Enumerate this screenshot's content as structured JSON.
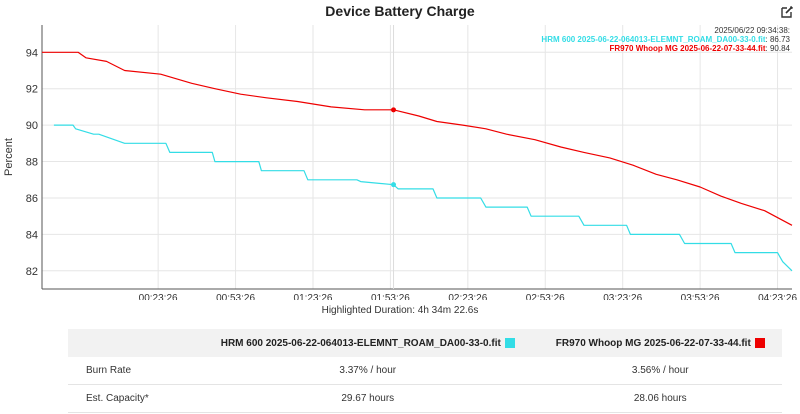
{
  "title": "Device Battery Charge",
  "readout": {
    "timestamp": "2025/06/22 09:34:38:",
    "entries": [
      {
        "name": "HRM 600 2025-06-22-064013-ELEMNT_ROAM_DA00-33-0.fit",
        "value": "86.73"
      },
      {
        "name": "FR970 Whoop MG 2025-06-22-07-33-44.fit",
        "value": "90.84"
      }
    ]
  },
  "highlighted_duration": "Highlighted Duration: 4h 34m 22.6s",
  "stats_table": {
    "columns": [
      "HRM 600 2025-06-22-064013-ELEMNT_ROAM_DA00-33-0.fit",
      "FR970 Whoop MG 2025-06-22-07-33-44.fit"
    ],
    "rows": [
      {
        "label": "Burn Rate",
        "values": [
          "3.37% / hour",
          "3.56% / hour"
        ]
      },
      {
        "label": "Est. Capacity*",
        "values": [
          "29.67 hours",
          "28.06 hours"
        ]
      }
    ]
  },
  "colors": {
    "hrm": "#33dde6",
    "fr970": "#ee0000",
    "grid": "#e6e6e6",
    "axis": "#555555"
  },
  "icons": {
    "edit": "edit-icon"
  },
  "chart_data": {
    "type": "line",
    "title": "Device Battery Charge",
    "xlabel": "",
    "ylabel": "Percent",
    "x_unit": "minutes since 23:53:26",
    "x_range": [
      -15,
      275.6
    ],
    "ylim": [
      81,
      95.5
    ],
    "y_ticks": [
      82,
      84,
      86,
      88,
      90,
      92,
      94
    ],
    "x_ticks": [
      {
        "x": 30,
        "label": "00:23:26"
      },
      {
        "x": 60,
        "label": "00:53:26"
      },
      {
        "x": 90,
        "label": "01:23:26"
      },
      {
        "x": 120,
        "label": "01:53:26"
      },
      {
        "x": 150,
        "label": "02:23:26"
      },
      {
        "x": 180,
        "label": "02:53:26"
      },
      {
        "x": 210,
        "label": "03:23:26"
      },
      {
        "x": 240,
        "label": "03:53:26"
      },
      {
        "x": 270,
        "label": "04:23:26"
      },
      {
        "x": 300,
        "label": "04:53:26"
      }
    ],
    "grid": true,
    "cursor_x": 121.2,
    "series": [
      {
        "name": "HRM 600 2025-06-22-064013-ELEMNT_ROAM_DA00-33-0.fit",
        "color": "#33dde6",
        "x": [
          -10.4,
          -3.0,
          -2.0,
          5.0,
          7.0,
          17.0,
          33.0,
          34.5,
          51.0,
          52.0,
          69.0,
          70.0,
          86.5,
          88.0,
          107.0,
          108.5,
          121.2,
          123.0,
          136.5,
          138.0,
          155.0,
          157.0,
          173.0,
          174.5,
          193.0,
          195.0,
          211.5,
          213.0,
          232.0,
          234.0,
          252.0,
          253.5,
          270.0,
          272.0,
          275.6
        ],
        "y": [
          90.0,
          90.0,
          89.8,
          89.5,
          89.5,
          89.0,
          89.0,
          88.5,
          88.5,
          88.0,
          88.0,
          87.5,
          87.5,
          87.0,
          87.0,
          86.9,
          86.73,
          86.5,
          86.5,
          86.0,
          86.0,
          85.5,
          85.5,
          85.0,
          85.0,
          84.5,
          84.5,
          84.0,
          84.0,
          83.5,
          83.5,
          83.0,
          83.0,
          82.5,
          82.0
        ]
      },
      {
        "name": "FR970 Whoop MG 2025-06-22-07-33-44.fit",
        "color": "#ee0000",
        "x": [
          -15.0,
          -1.0,
          2.0,
          10.0,
          17.0,
          31.0,
          43.0,
          52.0,
          62.0,
          72.0,
          84.0,
          97.0,
          110.0,
          121.2,
          131.0,
          138.0,
          148.0,
          157.0,
          165.0,
          176.0,
          186.0,
          195.0,
          205.0,
          214.0,
          223.0,
          231.0,
          240.0,
          248.0,
          256.0,
          265.0,
          275.6
        ],
        "y": [
          94.0,
          94.0,
          93.7,
          93.5,
          93.0,
          92.8,
          92.3,
          92.0,
          91.7,
          91.5,
          91.3,
          91.0,
          90.84,
          90.84,
          90.5,
          90.2,
          90.0,
          89.8,
          89.5,
          89.2,
          88.8,
          88.5,
          88.2,
          87.8,
          87.3,
          87.0,
          86.6,
          86.1,
          85.7,
          85.3,
          84.5
        ]
      }
    ],
    "highlight_points": [
      {
        "series": 0,
        "x": 121.2,
        "y": 86.73
      },
      {
        "series": 1,
        "x": 121.2,
        "y": 90.84
      }
    ]
  }
}
